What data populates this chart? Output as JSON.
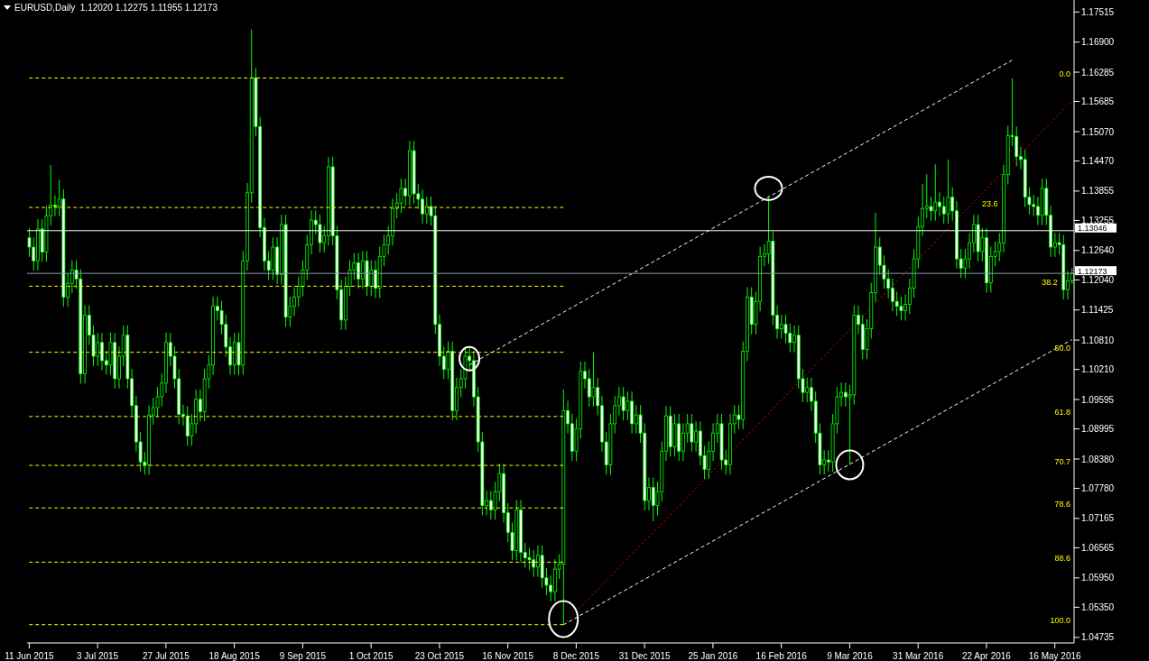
{
  "chart_data": {
    "type": "candlestick",
    "title": "EURUSD,Daily  1.12020 1.12275 1.11955 1.12173",
    "color": "#00ff00",
    "categories": [
      "11 Jun 2015",
      null,
      null,
      null,
      null,
      null,
      null,
      null,
      null,
      null,
      null,
      null,
      null,
      null,
      null,
      null,
      "3 Jul 2015",
      null,
      null,
      null,
      null,
      null,
      null,
      null,
      null,
      null,
      null,
      null,
      null,
      null,
      null,
      null,
      "27 Jul 2015",
      null,
      null,
      null,
      null,
      null,
      null,
      null,
      null,
      null,
      null,
      null,
      null,
      null,
      null,
      null,
      "18 Aug 2015",
      null,
      null,
      null,
      null,
      null,
      null,
      null,
      null,
      null,
      null,
      null,
      null,
      null,
      null,
      null,
      "9 Sep 2015",
      null,
      null,
      null,
      null,
      null,
      null,
      null,
      null,
      null,
      null,
      null,
      null,
      null,
      null,
      null,
      "1 Oct 2015",
      null,
      null,
      null,
      null,
      null,
      null,
      null,
      null,
      null,
      null,
      null,
      null,
      null,
      null,
      null,
      "23 Oct 2015",
      null,
      null,
      null,
      null,
      null,
      null,
      null,
      null,
      null,
      null,
      null,
      null,
      null,
      null,
      null,
      "16 Nov 2015",
      null,
      null,
      null,
      null,
      null,
      null,
      null,
      null,
      null,
      null,
      null,
      null,
      null,
      null,
      null,
      "8 Dec 2015",
      null,
      null,
      null,
      null,
      null,
      null,
      null,
      null,
      null,
      null,
      null,
      null,
      null,
      null,
      null,
      "31 Dec 2015",
      null,
      null,
      null,
      null,
      null,
      null,
      null,
      null,
      null,
      null,
      null,
      null,
      null,
      null,
      null,
      "25 Jan 2016",
      null,
      null,
      null,
      null,
      null,
      null,
      null,
      null,
      null,
      null,
      null,
      null,
      null,
      null,
      null,
      "16 Feb 2016",
      null,
      null,
      null,
      null,
      null,
      null,
      null,
      null,
      null,
      null,
      null,
      null,
      null,
      null,
      null,
      "9 Mar 2016",
      null,
      null,
      null,
      null,
      null,
      null,
      null,
      null,
      null,
      null,
      null,
      null,
      null,
      null,
      null,
      "31 Mar 2016",
      null,
      null,
      null,
      null,
      null,
      null,
      null,
      null,
      null,
      null,
      null,
      null,
      null,
      null,
      null,
      "22 Apr 2016",
      null,
      null,
      null,
      null,
      null,
      null,
      null,
      null,
      null,
      null,
      null,
      null,
      null,
      null,
      null,
      "16 May 2016",
      null,
      null,
      null,
      null
    ],
    "ohlc": [
      [
        1.129,
        1.131,
        1.1251,
        1.1271
      ],
      [
        1.1271,
        1.1291,
        1.1223,
        1.1243
      ],
      [
        1.1243,
        1.1328,
        1.1223,
        1.1308
      ],
      [
        1.1308,
        1.1328,
        1.1241,
        1.1261
      ],
      [
        1.1261,
        1.1355,
        1.1241,
        1.1335
      ],
      [
        1.1335,
        1.1439,
        1.1315,
        1.1357
      ],
      [
        1.1357,
        1.1377,
        1.1334,
        1.1354
      ],
      [
        1.1354,
        1.1409,
        1.1334,
        1.1369
      ],
      [
        1.1369,
        1.1389,
        1.1149,
        1.1169
      ],
      [
        1.1169,
        1.1217,
        1.1149,
        1.1197
      ],
      [
        1.1197,
        1.1244,
        1.1177,
        1.1224
      ],
      [
        1.1224,
        1.1244,
        1.1186,
        1.1206
      ],
      [
        1.1206,
        1.1226,
        1.0992,
        1.1012
      ],
      [
        1.1012,
        1.1152,
        1.0992,
        1.1132
      ],
      [
        1.1132,
        1.1152,
        1.1071,
        1.1091
      ],
      [
        1.1091,
        1.1111,
        1.1028,
        1.1048
      ],
      [
        1.1048,
        1.1096,
        1.1028,
        1.1076
      ],
      [
        1.1076,
        1.1096,
        1.1019,
        1.1039
      ],
      [
        1.1039,
        1.1059,
        1.101,
        1.103
      ],
      [
        1.103,
        1.1096,
        1.101,
        1.1076
      ],
      [
        1.1076,
        1.1096,
        1.0982,
        1.1002
      ],
      [
        1.1002,
        1.1068,
        1.0982,
        1.1048
      ],
      [
        1.1048,
        1.1111,
        1.1028,
        1.1091
      ],
      [
        1.1091,
        1.1111,
        1.0982,
        1.1002
      ],
      [
        1.1002,
        1.1022,
        1.0927,
        1.0947
      ],
      [
        1.0947,
        1.0967,
        1.0853,
        1.0873
      ],
      [
        1.0873,
        1.0893,
        1.0812,
        1.0832
      ],
      [
        1.0832,
        1.0852,
        1.0806,
        1.0826
      ],
      [
        1.0826,
        1.0948,
        1.0806,
        1.0928
      ],
      [
        1.0928,
        1.0963,
        1.0908,
        1.0943
      ],
      [
        1.0943,
        1.0985,
        1.0923,
        1.0965
      ],
      [
        1.0965,
        1.1013,
        1.0945,
        1.0993
      ],
      [
        1.0993,
        1.1096,
        1.0973,
        1.1076
      ],
      [
        1.1076,
        1.1096,
        1.1028,
        1.1048
      ],
      [
        1.1048,
        1.1068,
        1.0982,
        1.1002
      ],
      [
        1.1002,
        1.1022,
        1.0909,
        1.0929
      ],
      [
        1.0929,
        1.0949,
        1.0906,
        1.0926
      ],
      [
        1.0926,
        1.0946,
        1.0865,
        1.0885
      ],
      [
        1.0885,
        1.093,
        1.0865,
        1.091
      ],
      [
        1.091,
        1.098,
        1.089,
        1.096
      ],
      [
        1.096,
        1.098,
        1.0915,
        1.0935
      ],
      [
        1.0935,
        1.1022,
        1.0915,
        1.1002
      ],
      [
        1.1002,
        1.105,
        1.0982,
        1.103
      ],
      [
        1.103,
        1.117,
        1.101,
        1.115
      ],
      [
        1.115,
        1.117,
        1.1121,
        1.1141
      ],
      [
        1.1141,
        1.1161,
        1.1093,
        1.1113
      ],
      [
        1.1113,
        1.1133,
        1.1047,
        1.1067
      ],
      [
        1.1067,
        1.1087,
        1.101,
        1.103
      ],
      [
        1.103,
        1.1096,
        1.101,
        1.1076
      ],
      [
        1.1076,
        1.1096,
        1.101,
        1.103
      ],
      [
        1.103,
        1.1263,
        1.101,
        1.1243
      ],
      [
        1.1243,
        1.1402,
        1.1223,
        1.1382
      ],
      [
        1.1382,
        1.1716,
        1.1362,
        1.1617
      ],
      [
        1.1617,
        1.1637,
        1.1497,
        1.1517
      ],
      [
        1.1517,
        1.1537,
        1.1291,
        1.1311
      ],
      [
        1.1311,
        1.1331,
        1.1223,
        1.1243
      ],
      [
        1.1243,
        1.1263,
        1.1204,
        1.1224
      ],
      [
        1.1224,
        1.1291,
        1.1204,
        1.1271
      ],
      [
        1.1271,
        1.1291,
        1.1195,
        1.1215
      ],
      [
        1.1215,
        1.1337,
        1.1195,
        1.1317
      ],
      [
        1.1317,
        1.1337,
        1.1108,
        1.1128
      ],
      [
        1.1128,
        1.117,
        1.1108,
        1.115
      ],
      [
        1.115,
        1.1189,
        1.113,
        1.1169
      ],
      [
        1.1169,
        1.1211,
        1.1149,
        1.1191
      ],
      [
        1.1191,
        1.1244,
        1.1171,
        1.1224
      ],
      [
        1.1224,
        1.1296,
        1.1204,
        1.1276
      ],
      [
        1.1276,
        1.1346,
        1.1256,
        1.1326
      ],
      [
        1.1326,
        1.1346,
        1.1297,
        1.1317
      ],
      [
        1.1317,
        1.1337,
        1.126,
        1.128
      ],
      [
        1.128,
        1.1314,
        1.126,
        1.1294
      ],
      [
        1.1294,
        1.1455,
        1.1274,
        1.1435
      ],
      [
        1.1435,
        1.1455,
        1.1274,
        1.1294
      ],
      [
        1.1294,
        1.1314,
        1.1164,
        1.1184
      ],
      [
        1.1184,
        1.1204,
        1.1102,
        1.1122
      ],
      [
        1.1122,
        1.1211,
        1.1102,
        1.1191
      ],
      [
        1.1191,
        1.1244,
        1.1171,
        1.1224
      ],
      [
        1.1224,
        1.1259,
        1.1204,
        1.1239
      ],
      [
        1.1239,
        1.1259,
        1.1186,
        1.1206
      ],
      [
        1.1206,
        1.1263,
        1.1186,
        1.1243
      ],
      [
        1.1243,
        1.1263,
        1.1171,
        1.1191
      ],
      [
        1.1191,
        1.1244,
        1.1171,
        1.1224
      ],
      [
        1.1224,
        1.1244,
        1.1167,
        1.1187
      ],
      [
        1.1187,
        1.1272,
        1.1167,
        1.1252
      ],
      [
        1.1252,
        1.1296,
        1.1232,
        1.1276
      ],
      [
        1.1276,
        1.1314,
        1.1256,
        1.1294
      ],
      [
        1.1294,
        1.137,
        1.1274,
        1.135
      ],
      [
        1.135,
        1.1381,
        1.133,
        1.1361
      ],
      [
        1.1361,
        1.1411,
        1.1341,
        1.1391
      ],
      [
        1.1391,
        1.1411,
        1.1356,
        1.1376
      ],
      [
        1.1376,
        1.1488,
        1.1356,
        1.1468
      ],
      [
        1.1468,
        1.1488,
        1.136,
        1.138
      ],
      [
        1.138,
        1.14,
        1.1349,
        1.1369
      ],
      [
        1.1369,
        1.1389,
        1.1319,
        1.1339
      ],
      [
        1.1339,
        1.1374,
        1.1319,
        1.1354
      ],
      [
        1.1354,
        1.1374,
        1.1315,
        1.1335
      ],
      [
        1.1335,
        1.1355,
        1.1093,
        1.1113
      ],
      [
        1.1113,
        1.1133,
        1.1028,
        1.1048
      ],
      [
        1.1048,
        1.1068,
        1.1001,
        1.1021
      ],
      [
        1.1021,
        1.1078,
        1.1001,
        1.1058
      ],
      [
        1.1058,
        1.1078,
        1.0917,
        1.0937
      ],
      [
        1.0937,
        1.1004,
        1.0917,
        1.0984
      ],
      [
        1.0984,
        1.1022,
        1.0964,
        1.1002
      ],
      [
        1.1002,
        1.1068,
        1.0982,
        1.1048
      ],
      [
        1.1048,
        1.1068,
        1.1019,
        1.1039
      ],
      [
        1.1039,
        1.1059,
        1.0945,
        1.0965
      ],
      [
        1.0965,
        1.0985,
        1.0853,
        1.0873
      ],
      [
        1.0873,
        1.0893,
        1.0723,
        1.0743
      ],
      [
        1.0743,
        1.0773,
        1.0723,
        1.0753
      ],
      [
        1.0753,
        1.0773,
        1.0714,
        1.0734
      ],
      [
        1.0734,
        1.0791,
        1.0714,
        1.0771
      ],
      [
        1.0771,
        1.0828,
        1.0751,
        1.0808
      ],
      [
        1.0808,
        1.0828,
        1.0708,
        1.0728
      ],
      [
        1.0728,
        1.0748,
        1.0668,
        1.0688
      ],
      [
        1.0688,
        1.0708,
        1.0631,
        1.0651
      ],
      [
        1.0651,
        1.0754,
        1.0631,
        1.0734
      ],
      [
        1.0734,
        1.0754,
        1.0627,
        1.0647
      ],
      [
        1.0647,
        1.0667,
        1.0616,
        1.0636
      ],
      [
        1.0636,
        1.0656,
        1.0612,
        1.0632
      ],
      [
        1.0632,
        1.0652,
        1.0597,
        1.0617
      ],
      [
        1.0617,
        1.0661,
        1.0597,
        1.0641
      ],
      [
        1.0641,
        1.0661,
        1.0575,
        1.0595
      ],
      [
        1.0595,
        1.0615,
        1.056,
        1.058
      ],
      [
        1.058,
        1.06,
        1.0547,
        1.0567
      ],
      [
        1.0567,
        1.0633,
        1.0547,
        1.0613
      ],
      [
        1.0613,
        1.0643,
        1.0593,
        1.0623
      ],
      [
        1.0623,
        1.098,
        1.0499,
        1.0937
      ],
      [
        1.0937,
        1.0957,
        1.089,
        1.091
      ],
      [
        1.091,
        1.093,
        1.0834,
        1.0854
      ],
      [
        1.0854,
        1.092,
        1.0834,
        1.09
      ],
      [
        1.09,
        1.1037,
        1.088,
        1.1017
      ],
      [
        1.1017,
        1.1037,
        1.0982,
        1.1002
      ],
      [
        1.1002,
        1.1022,
        1.0945,
        1.0965
      ],
      [
        1.0965,
        1.1056,
        1.0945,
        1.0984
      ],
      [
        1.0984,
        1.1004,
        1.0927,
        1.0947
      ],
      [
        1.0947,
        1.0967,
        1.0853,
        1.0873
      ],
      [
        1.0873,
        1.0893,
        1.0806,
        1.0826
      ],
      [
        1.0826,
        1.093,
        1.0806,
        1.091
      ],
      [
        1.091,
        1.0967,
        1.089,
        1.0947
      ],
      [
        1.0947,
        1.0985,
        1.0927,
        1.0965
      ],
      [
        1.0965,
        1.0985,
        1.0917,
        1.0937
      ],
      [
        1.0937,
        1.0976,
        1.0917,
        1.0956
      ],
      [
        1.0956,
        1.0976,
        1.089,
        1.091
      ],
      [
        1.091,
        1.0948,
        1.089,
        1.0928
      ],
      [
        1.0928,
        1.0948,
        1.0871,
        1.0891
      ],
      [
        1.0891,
        1.0911,
        1.0733,
        1.0753
      ],
      [
        1.0753,
        1.08,
        1.0733,
        1.078
      ],
      [
        1.078,
        1.08,
        1.0711,
        1.0743
      ],
      [
        1.0743,
        1.0791,
        1.0723,
        1.0771
      ],
      [
        1.0771,
        1.0874,
        1.0751,
        1.0854
      ],
      [
        1.0854,
        1.0946,
        1.0834,
        1.0926
      ],
      [
        1.0926,
        1.0946,
        1.0843,
        1.0863
      ],
      [
        1.0863,
        1.093,
        1.0843,
        1.091
      ],
      [
        1.091,
        1.093,
        1.0834,
        1.0854
      ],
      [
        1.0854,
        1.0911,
        1.0834,
        1.0891
      ],
      [
        1.0891,
        1.093,
        1.0871,
        1.091
      ],
      [
        1.091,
        1.093,
        1.0853,
        1.0873
      ],
      [
        1.0873,
        1.0915,
        1.0853,
        1.0895
      ],
      [
        1.0895,
        1.0915,
        1.0825,
        1.0845
      ],
      [
        1.0845,
        1.0865,
        1.0797,
        1.0817
      ],
      [
        1.0817,
        1.0874,
        1.0797,
        1.0854
      ],
      [
        1.0854,
        1.0911,
        1.0834,
        1.0891
      ],
      [
        1.0891,
        1.093,
        1.0871,
        1.091
      ],
      [
        1.091,
        1.093,
        1.0816,
        1.0836
      ],
      [
        1.0836,
        1.0856,
        1.0806,
        1.0826
      ],
      [
        1.0826,
        1.093,
        1.0806,
        1.091
      ],
      [
        1.091,
        1.0948,
        1.089,
        1.0928
      ],
      [
        1.0928,
        1.0948,
        1.0899,
        1.0919
      ],
      [
        1.0919,
        1.1078,
        1.0899,
        1.1058
      ],
      [
        1.1058,
        1.1189,
        1.1038,
        1.1169
      ],
      [
        1.1169,
        1.1189,
        1.1093,
        1.1113
      ],
      [
        1.1113,
        1.118,
        1.1093,
        1.116
      ],
      [
        1.116,
        1.1272,
        1.114,
        1.1252
      ],
      [
        1.1252,
        1.1277,
        1.1232,
        1.1257
      ],
      [
        1.1257,
        1.1376,
        1.1237,
        1.1283
      ],
      [
        1.1283,
        1.1303,
        1.1112,
        1.1132
      ],
      [
        1.1132,
        1.1152,
        1.1084,
        1.1104
      ],
      [
        1.1104,
        1.1133,
        1.1084,
        1.1113
      ],
      [
        1.1113,
        1.1133,
        1.1075,
        1.1095
      ],
      [
        1.1095,
        1.1115,
        1.1056,
        1.1076
      ],
      [
        1.1076,
        1.1111,
        1.1056,
        1.1091
      ],
      [
        1.1091,
        1.1111,
        1.0982,
        1.1002
      ],
      [
        1.1002,
        1.1022,
        1.0954,
        1.0974
      ],
      [
        1.0974,
        1.1004,
        1.0954,
        1.0984
      ],
      [
        1.0984,
        1.1004,
        1.0936,
        1.0956
      ],
      [
        1.0956,
        1.0976,
        1.0871,
        1.0891
      ],
      [
        1.0891,
        1.0911,
        1.0806,
        1.0826
      ],
      [
        1.0826,
        1.0856,
        1.0806,
        1.0836
      ],
      [
        1.0836,
        1.0856,
        1.0812,
        1.0832
      ],
      [
        1.0832,
        1.093,
        1.0812,
        1.091
      ],
      [
        1.091,
        1.0985,
        1.089,
        1.0965
      ],
      [
        1.0965,
        1.0994,
        1.0945,
        1.0974
      ],
      [
        1.0974,
        1.0994,
        1.0945,
        1.0965
      ],
      [
        1.0965,
        1.0989,
        1.0826,
        1.0969
      ],
      [
        1.0969,
        1.1152,
        1.0949,
        1.1132
      ],
      [
        1.1132,
        1.1152,
        1.1093,
        1.1113
      ],
      [
        1.1113,
        1.1133,
        1.1042,
        1.1062
      ],
      [
        1.1062,
        1.1124,
        1.1042,
        1.1104
      ],
      [
        1.1104,
        1.1198,
        1.1084,
        1.1178
      ],
      [
        1.1178,
        1.1341,
        1.1158,
        1.1271
      ],
      [
        1.1271,
        1.1291,
        1.1214,
        1.1234
      ],
      [
        1.1234,
        1.1254,
        1.1186,
        1.1206
      ],
      [
        1.1206,
        1.1226,
        1.1167,
        1.1187
      ],
      [
        1.1187,
        1.1207,
        1.114,
        1.116
      ],
      [
        1.116,
        1.118,
        1.113,
        1.115
      ],
      [
        1.115,
        1.117,
        1.1121,
        1.1141
      ],
      [
        1.1141,
        1.1174,
        1.1121,
        1.1154
      ],
      [
        1.1154,
        1.1207,
        1.1134,
        1.1187
      ],
      [
        1.1187,
        1.1267,
        1.1167,
        1.1247
      ],
      [
        1.1247,
        1.1333,
        1.1227,
        1.1313
      ],
      [
        1.1313,
        1.14,
        1.1293,
        1.135
      ],
      [
        1.135,
        1.142,
        1.133,
        1.1354
      ],
      [
        1.1354,
        1.1374,
        1.1325,
        1.1345
      ],
      [
        1.1345,
        1.144,
        1.1325,
        1.1363
      ],
      [
        1.1363,
        1.1383,
        1.1334,
        1.1354
      ],
      [
        1.1354,
        1.1374,
        1.1319,
        1.1339
      ],
      [
        1.1339,
        1.145,
        1.1319,
        1.1373
      ],
      [
        1.1373,
        1.1393,
        1.1325,
        1.1345
      ],
      [
        1.1345,
        1.1365,
        1.1227,
        1.1247
      ],
      [
        1.1247,
        1.1267,
        1.1208,
        1.1228
      ],
      [
        1.1228,
        1.1267,
        1.1208,
        1.1247
      ],
      [
        1.1247,
        1.13,
        1.1227,
        1.128
      ],
      [
        1.128,
        1.1337,
        1.126,
        1.1317
      ],
      [
        1.1317,
        1.1337,
        1.1242,
        1.1262
      ],
      [
        1.1262,
        1.131,
        1.1242,
        1.129
      ],
      [
        1.129,
        1.131,
        1.1178,
        1.1198
      ],
      [
        1.1198,
        1.1272,
        1.1178,
        1.1252
      ],
      [
        1.1252,
        1.1282,
        1.1232,
        1.1262
      ],
      [
        1.1262,
        1.13,
        1.1242,
        1.128
      ],
      [
        1.128,
        1.1439,
        1.126,
        1.1419
      ],
      [
        1.1419,
        1.1519,
        1.1399,
        1.1499
      ],
      [
        1.1499,
        1.1616,
        1.1477,
        1.1497
      ],
      [
        1.1497,
        1.1517,
        1.1436,
        1.1456
      ],
      [
        1.1456,
        1.1476,
        1.143,
        1.145
      ],
      [
        1.145,
        1.147,
        1.1353,
        1.1373
      ],
      [
        1.1373,
        1.1393,
        1.1338,
        1.1358
      ],
      [
        1.1358,
        1.1378,
        1.1334,
        1.1354
      ],
      [
        1.1354,
        1.1374,
        1.1316,
        1.1336
      ],
      [
        1.1336,
        1.1411,
        1.1316,
        1.1391
      ],
      [
        1.1391,
        1.1411,
        1.1316,
        1.1336
      ],
      [
        1.1336,
        1.1356,
        1.1251,
        1.1271
      ],
      [
        1.1271,
        1.13,
        1.1251,
        1.128
      ],
      [
        1.128,
        1.13,
        1.1256,
        1.1276
      ],
      [
        1.1276,
        1.1296,
        1.1164,
        1.1184
      ],
      [
        1.1184,
        1.1222,
        1.1164,
        1.1202
      ],
      [
        1.1202,
        1.12275,
        1.11955,
        1.12173
      ]
    ],
    "series": [
      {
        "type": "line",
        "color": "#ffffff",
        "line_style": "dashed",
        "values": [
          null,
          null,
          null,
          null,
          null,
          null,
          null,
          null,
          null,
          null,
          null,
          null,
          null,
          null,
          null,
          null,
          null,
          null,
          null,
          null,
          null,
          null,
          null,
          null,
          null,
          null,
          null,
          null,
          null,
          null,
          null,
          null,
          null,
          null,
          null,
          null,
          null,
          null,
          null,
          null,
          null,
          null,
          null,
          null,
          null,
          null,
          null,
          null,
          null,
          null,
          null,
          null,
          null,
          null,
          null,
          null,
          null,
          null,
          null,
          null,
          null,
          null,
          null,
          null,
          null,
          null,
          null,
          null,
          null,
          null,
          null,
          null,
          null,
          null,
          null,
          null,
          null,
          null,
          null,
          null,
          null,
          null,
          null,
          null,
          null,
          null,
          null,
          null,
          null,
          null,
          null,
          null,
          null,
          null,
          null,
          null,
          null,
          null,
          null,
          null,
          null,
          null,
          null,
          1.103,
          null,
          null,
          null,
          null,
          null,
          null,
          null,
          null,
          null,
          null,
          null,
          null,
          null,
          null,
          null,
          null,
          null,
          null,
          null,
          null,
          null,
          null,
          null,
          null,
          null,
          null,
          null,
          null,
          null,
          null,
          null,
          null,
          null,
          null,
          null,
          null,
          null,
          null,
          null,
          null,
          null,
          null,
          null,
          null,
          null,
          null,
          null,
          null,
          null,
          null,
          null,
          null,
          null,
          null,
          null,
          null,
          null,
          null,
          null,
          null,
          null,
          null,
          null,
          null,
          null,
          null,
          null,
          null,
          null,
          null,
          null,
          null,
          null,
          null,
          null,
          null,
          null,
          null,
          null,
          null,
          null,
          null,
          null,
          null,
          null,
          null,
          null,
          null,
          null,
          null,
          null,
          null,
          null,
          null,
          null,
          null,
          null,
          null,
          null,
          null,
          null,
          null,
          null,
          null,
          null,
          null,
          null,
          null,
          null,
          null,
          null,
          null,
          null,
          null,
          null,
          null,
          null,
          null,
          null,
          null,
          null,
          null,
          null,
          null,
          null,
          null,
          1.1653,
          null,
          null,
          null,
          null,
          null,
          null,
          null,
          null,
          null,
          null,
          null,
          null,
          null,
          null
        ]
      },
      {
        "type": "line",
        "color": "#ffffff",
        "line_style": "dashed",
        "values": [
          null,
          null,
          null,
          null,
          null,
          null,
          null,
          null,
          null,
          null,
          null,
          null,
          null,
          null,
          null,
          null,
          null,
          null,
          null,
          null,
          null,
          null,
          null,
          null,
          null,
          null,
          null,
          null,
          null,
          null,
          null,
          null,
          null,
          null,
          null,
          null,
          null,
          null,
          null,
          null,
          null,
          null,
          null,
          null,
          null,
          null,
          null,
          null,
          null,
          null,
          null,
          null,
          null,
          null,
          null,
          null,
          null,
          null,
          null,
          null,
          null,
          null,
          null,
          null,
          null,
          null,
          null,
          null,
          null,
          null,
          null,
          null,
          null,
          null,
          null,
          null,
          null,
          null,
          null,
          null,
          null,
          null,
          null,
          null,
          null,
          null,
          null,
          null,
          null,
          null,
          null,
          null,
          null,
          null,
          null,
          null,
          null,
          null,
          null,
          null,
          null,
          null,
          null,
          null,
          null,
          null,
          null,
          null,
          null,
          null,
          null,
          null,
          null,
          null,
          null,
          null,
          null,
          null,
          null,
          null,
          null,
          null,
          null,
          null,
          null,
          1.0499,
          null,
          null,
          null,
          null,
          null,
          null,
          null,
          null,
          null,
          null,
          null,
          null,
          null,
          null,
          null,
          null,
          null,
          null,
          null,
          null,
          null,
          null,
          null,
          null,
          null,
          null,
          null,
          null,
          null,
          null,
          null,
          null,
          null,
          null,
          null,
          null,
          null,
          null,
          null,
          null,
          null,
          null,
          null,
          null,
          null,
          null,
          null,
          null,
          null,
          null,
          null,
          null,
          null,
          null,
          null,
          null,
          null,
          null,
          null,
          null,
          null,
          null,
          null,
          null,
          null,
          null,
          null,
          null,
          null,
          null,
          null,
          null,
          null,
          null,
          null,
          null,
          null,
          null,
          null,
          null,
          null,
          null,
          null,
          null,
          null,
          null,
          null,
          null,
          null,
          null,
          null,
          null,
          null,
          null,
          null,
          null,
          null,
          null,
          null,
          null,
          null,
          null,
          null,
          null,
          null,
          null,
          null,
          null,
          null,
          null,
          null,
          null,
          null,
          null,
          null,
          null,
          null,
          null,
          1.1082
        ]
      },
      {
        "type": "line",
        "color": "#ff0000",
        "line_style": "dotted",
        "values": [
          null,
          null,
          null,
          null,
          null,
          null,
          null,
          null,
          null,
          null,
          null,
          null,
          null,
          null,
          null,
          null,
          null,
          null,
          null,
          null,
          null,
          null,
          null,
          null,
          null,
          null,
          null,
          null,
          null,
          null,
          null,
          null,
          null,
          null,
          null,
          null,
          null,
          null,
          null,
          null,
          null,
          null,
          null,
          null,
          null,
          null,
          null,
          null,
          null,
          null,
          null,
          null,
          null,
          null,
          null,
          null,
          null,
          null,
          null,
          null,
          null,
          null,
          null,
          null,
          null,
          null,
          null,
          null,
          null,
          null,
          null,
          null,
          null,
          null,
          null,
          null,
          null,
          null,
          null,
          null,
          null,
          null,
          null,
          null,
          null,
          null,
          null,
          null,
          null,
          null,
          null,
          null,
          null,
          null,
          null,
          null,
          null,
          null,
          null,
          null,
          null,
          null,
          null,
          null,
          null,
          null,
          null,
          null,
          null,
          null,
          null,
          null,
          null,
          null,
          null,
          null,
          null,
          null,
          null,
          null,
          null,
          null,
          null,
          null,
          null,
          1.0499,
          null,
          null,
          null,
          null,
          null,
          null,
          null,
          null,
          null,
          null,
          null,
          null,
          null,
          null,
          null,
          null,
          null,
          null,
          null,
          null,
          null,
          null,
          null,
          null,
          null,
          null,
          null,
          null,
          null,
          null,
          null,
          null,
          null,
          null,
          null,
          null,
          null,
          null,
          null,
          null,
          null,
          null,
          null,
          null,
          null,
          null,
          null,
          null,
          null,
          null,
          null,
          null,
          null,
          null,
          null,
          null,
          null,
          null,
          null,
          null,
          null,
          null,
          null,
          null,
          null,
          null,
          null,
          null,
          null,
          null,
          null,
          null,
          null,
          null,
          null,
          null,
          null,
          null,
          null,
          null,
          null,
          null,
          null,
          null,
          null,
          null,
          null,
          null,
          null,
          null,
          null,
          null,
          null,
          null,
          null,
          null,
          null,
          null,
          null,
          null,
          null,
          null,
          null,
          null,
          null,
          null,
          null,
          null,
          null,
          null,
          null,
          null,
          null,
          null,
          null,
          null,
          null,
          null,
          1.157
        ]
      }
    ],
    "ref_lines": [
      {
        "axis": "y",
        "value": 1.16165,
        "color": "#ffff00",
        "line_style": "dashed"
      },
      {
        "axis": "y",
        "value": 1.1352,
        "color": "#ffff00",
        "line_style": "dashed"
      },
      {
        "axis": "y",
        "value": 1.11911,
        "color": "#ffff00",
        "line_style": "dashed"
      },
      {
        "axis": "y",
        "value": 1.10561,
        "color": "#ffff00",
        "line_style": "dashed"
      },
      {
        "axis": "y",
        "value": 1.09248,
        "color": "#ffff00",
        "line_style": "dashed"
      },
      {
        "axis": "y",
        "value": 1.08249,
        "color": "#ffff00",
        "line_style": "dashed"
      },
      {
        "axis": "y",
        "value": 1.0738,
        "color": "#ffff00",
        "line_style": "dashed"
      },
      {
        "axis": "y",
        "value": 1.06271,
        "color": "#ffff00",
        "line_style": "dashed"
      },
      {
        "axis": "y",
        "value": 1.04994,
        "color": "#ffff00",
        "line_style": "dashed"
      },
      {
        "axis": "y",
        "value": 1.13046,
        "label": "1.13046",
        "color": "#ffffff",
        "line_style": "solid"
      },
      {
        "axis": "y",
        "value": 1.12173,
        "label": "1.12173",
        "color": "#8c9aa8",
        "line_style": "solid"
      }
    ],
    "annotations": [
      "0.0",
      "23.6",
      "38.2",
      "50.0",
      "61.8",
      "70.7",
      "78.6",
      "88.6",
      "100.0"
    ],
    "ylim": [
      1.0462,
      1.1776
    ],
    "yticks": [
      1.17515,
      {
        "value": 1.169,
        "label": "1.16900"
      },
      1.16285,
      1.15685,
      {
        "value": 1.1507,
        "label": "1.15070"
      },
      {
        "value": 1.1447,
        "label": "1.14470"
      },
      1.13855,
      1.13255,
      {
        "value": 1.1264,
        "label": "1.12640"
      },
      {
        "value": 1.1204,
        "label": "1.12040"
      },
      1.11425,
      {
        "value": 1.1081,
        "label": "1.10810"
      },
      {
        "value": 1.1021,
        "label": "1.10210"
      },
      1.09595,
      1.08995,
      {
        "value": 1.0838,
        "label": "1.08380"
      },
      {
        "value": 1.0778,
        "label": "1.07780"
      },
      1.07165,
      1.06565,
      {
        "value": 1.0595,
        "label": "1.05950"
      },
      {
        "value": 1.0535,
        "label": "1.05350"
      },
      1.04735
    ]
  }
}
